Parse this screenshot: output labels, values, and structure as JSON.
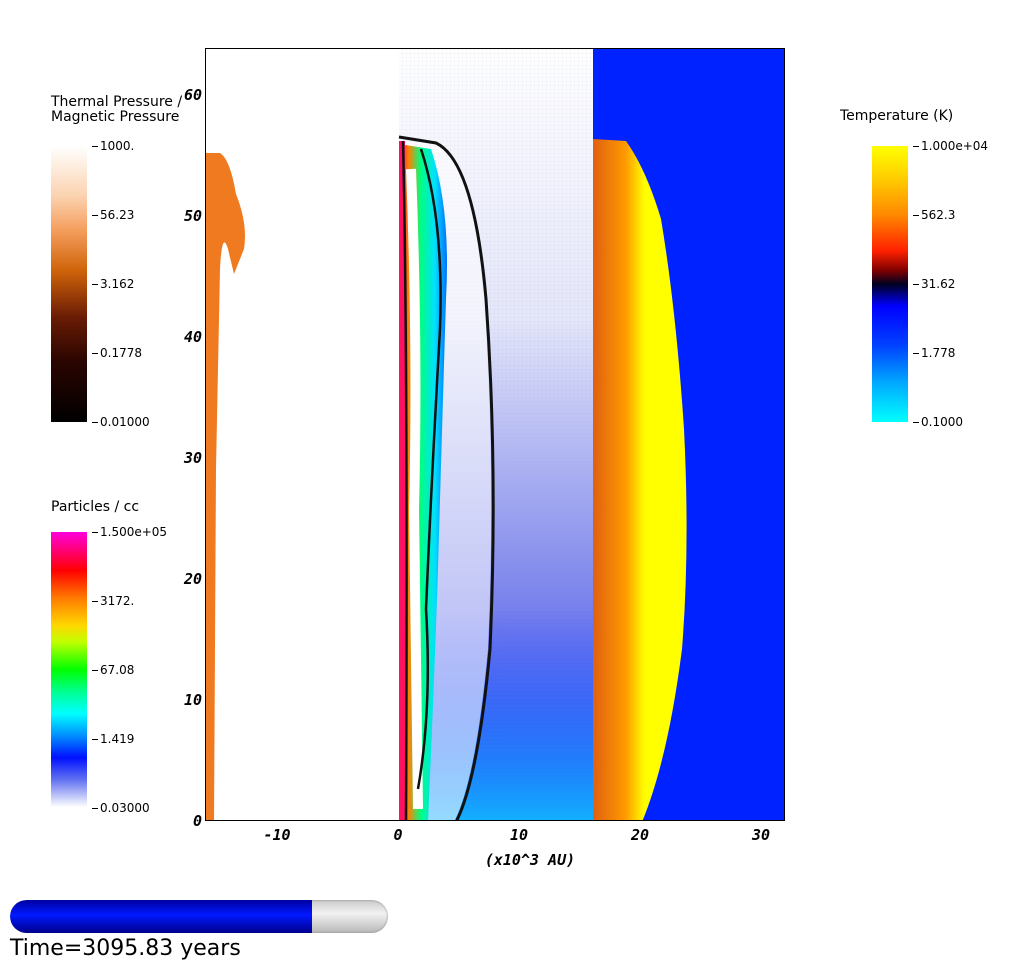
{
  "colorbars": {
    "pressure_ratio": {
      "title": "Thermal Pressure / Magnetic Pressure",
      "title_line1": "Thermal Pressure /",
      "title_line2": "Magnetic Pressure",
      "ticks": [
        "1000.",
        "56.23",
        "3.162",
        "0.1778",
        "0.01000"
      ]
    },
    "density": {
      "title": "Particles / cc",
      "ticks": [
        "1.500e+05",
        "3172.",
        "67.08",
        "1.419",
        "0.03000"
      ]
    },
    "temperature": {
      "title": "Temperature (K)",
      "ticks": [
        "1.000e+04",
        "562.3",
        "31.62",
        "1.778",
        "0.1000"
      ]
    }
  },
  "axes": {
    "xlabel": "(x10^3 AU)",
    "x_ticks": [
      "-10",
      "0",
      "10",
      "20",
      "30"
    ],
    "y_ticks": [
      "60",
      "50",
      "40",
      "30",
      "20",
      "10",
      "0"
    ],
    "xlim": [
      -16,
      32
    ],
    "ylim": [
      0,
      64
    ]
  },
  "panels": [
    "Thermal Pressure / Magnetic Pressure",
    "Particles / cc",
    "Temperature (K)"
  ],
  "colors": {
    "temperature_background": "#0022ff",
    "temperature_hot": "#ffff00",
    "pressure_orange": "#f07a20",
    "density_blue": "#5060e8"
  },
  "progress": {
    "fraction": 0.8
  },
  "time_label": "Time=3095.83 years"
}
